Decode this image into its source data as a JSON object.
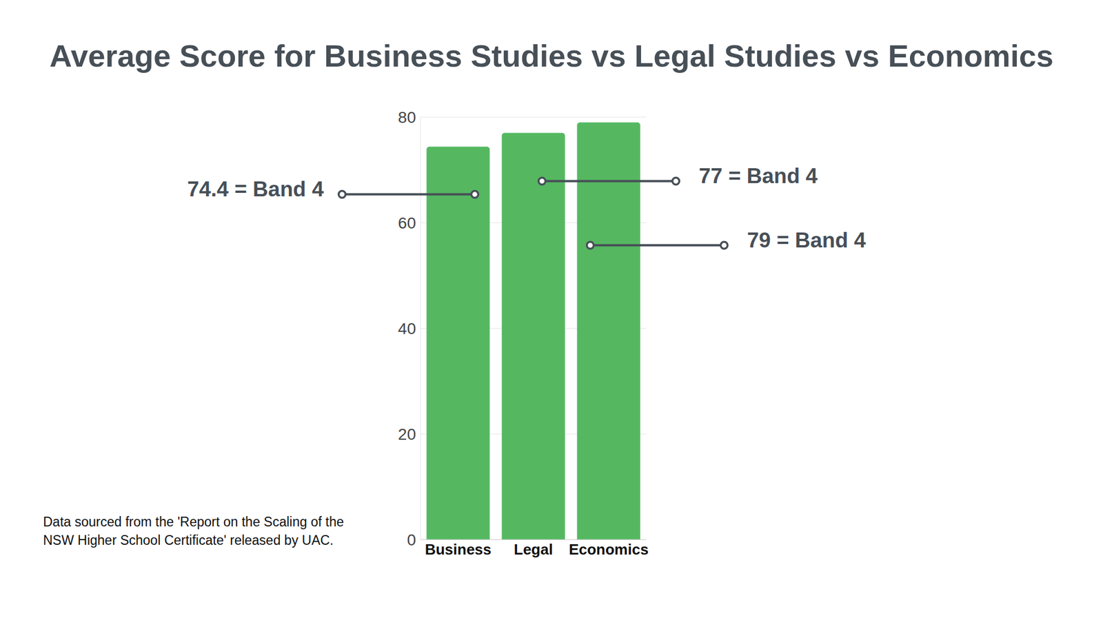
{
  "chart_data": {
    "type": "bar",
    "title": "Average Score for Business Studies vs Legal Studies vs Economics",
    "categories": [
      "Business",
      "Legal",
      "Economics"
    ],
    "values": [
      74.4,
      77,
      79
    ],
    "value_labels": [
      "74.4 = Band 4",
      "77 = Band 4",
      "79 = Band 4"
    ],
    "data_labels": true,
    "color": "#55b861",
    "ylim": [
      0,
      80
    ],
    "yticks": [
      0,
      20,
      40,
      60,
      80
    ],
    "grid": true,
    "source": "Data sourced from the 'Report on the Scaling of the NSW Higher School Certificate' released by UAC."
  }
}
